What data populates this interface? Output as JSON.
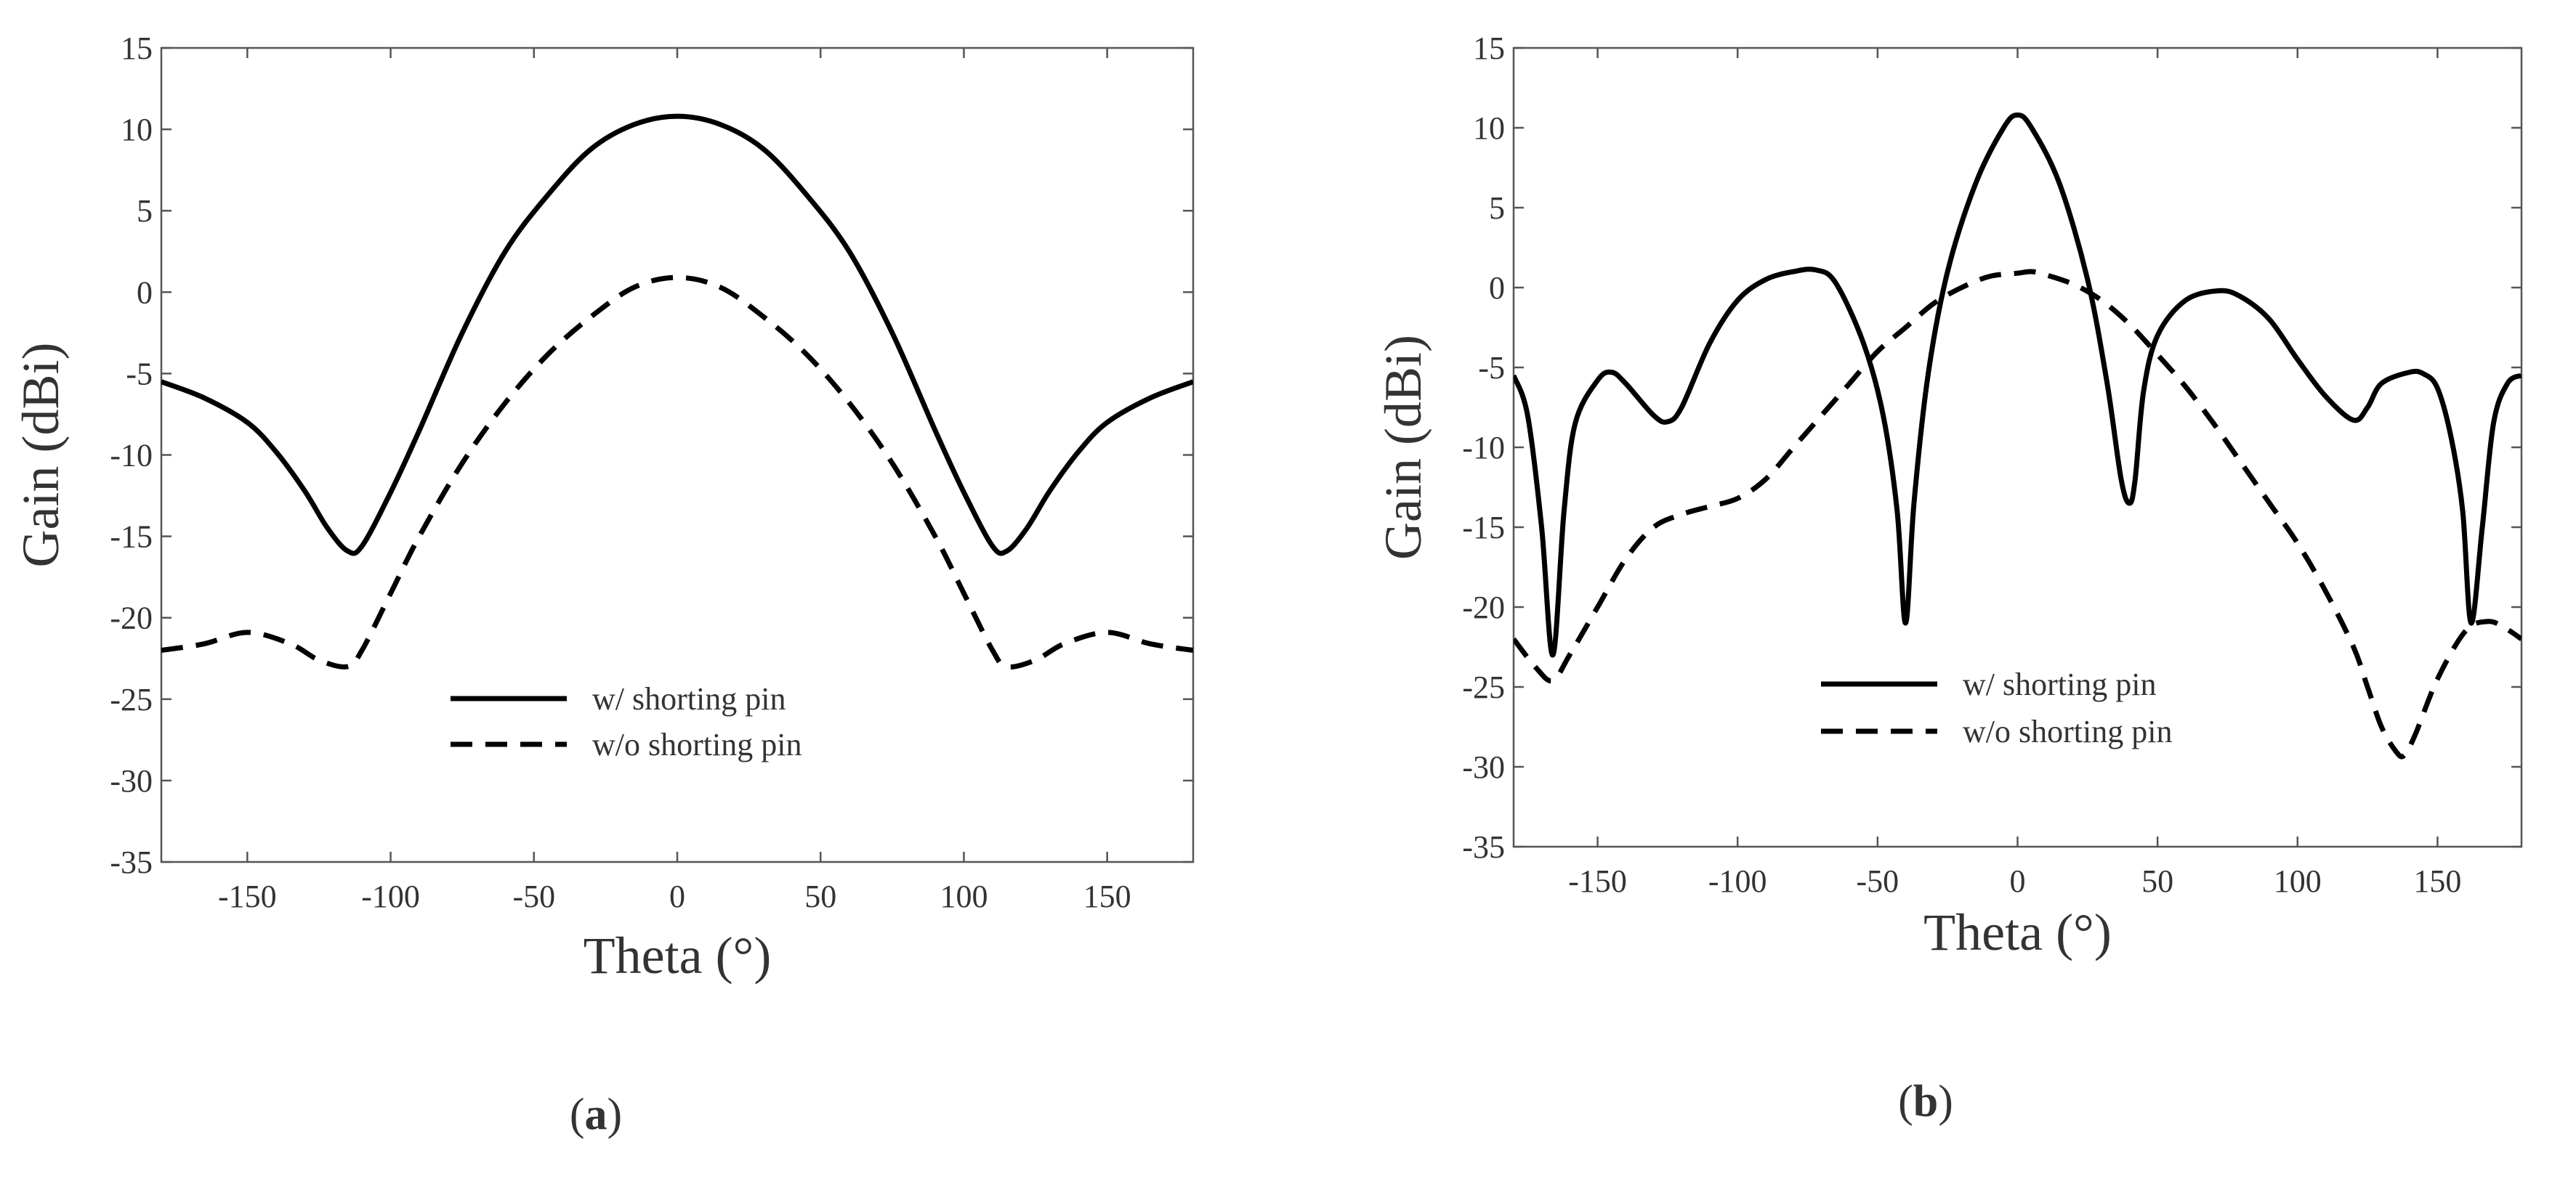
{
  "chart_data": [
    {
      "type": "line",
      "caption": "a",
      "xlabel": "Theta (°)",
      "ylabel": "Gain (dBi)",
      "xlim": [
        -180,
        180
      ],
      "ylim": [
        -35,
        15
      ],
      "xticks": [
        -150,
        -100,
        -50,
        0,
        50,
        100,
        150
      ],
      "yticks": [
        15,
        10,
        5,
        0,
        -5,
        -10,
        -15,
        -20,
        -25,
        -30,
        -35
      ],
      "grid": false,
      "legend_position": "lower-center",
      "series": [
        {
          "name": "w/ shorting pin",
          "style": "solid",
          "color": "#000000",
          "x": [
            -180,
            -165,
            -150,
            -140,
            -130,
            -122,
            -115,
            -110,
            -100,
            -90,
            -75,
            -60,
            -45,
            -30,
            -15,
            0,
            15,
            30,
            45,
            60,
            75,
            90,
            100,
            110,
            115,
            122,
            130,
            140,
            150,
            165,
            180
          ],
          "y": [
            -5.5,
            -6.5,
            -8.0,
            -9.8,
            -12.2,
            -14.5,
            -15.9,
            -15.6,
            -12.3,
            -8.5,
            -2.5,
            2.5,
            6.0,
            8.8,
            10.3,
            10.8,
            10.3,
            8.8,
            6.0,
            2.5,
            -2.5,
            -8.5,
            -12.3,
            -15.6,
            -15.9,
            -14.5,
            -12.2,
            -9.8,
            -8.0,
            -6.5,
            -5.5
          ]
        },
        {
          "name": "w/o shorting pin",
          "style": "dashed",
          "color": "#000000",
          "x": [
            -180,
            -165,
            -150,
            -135,
            -125,
            -115,
            -110,
            -100,
            -90,
            -75,
            -60,
            -45,
            -30,
            -15,
            0,
            15,
            30,
            45,
            60,
            75,
            90,
            100,
            110,
            115,
            125,
            135,
            150,
            165,
            180
          ],
          "y": [
            -22.0,
            -21.6,
            -20.9,
            -21.6,
            -22.6,
            -23.0,
            -22.0,
            -18.5,
            -15.0,
            -10.5,
            -6.8,
            -3.8,
            -1.5,
            0.3,
            0.9,
            0.3,
            -1.5,
            -3.8,
            -6.8,
            -10.5,
            -15.0,
            -18.5,
            -22.0,
            -23.0,
            -22.6,
            -21.6,
            -20.9,
            -21.6,
            -22.0
          ]
        }
      ]
    },
    {
      "type": "line",
      "caption": "b",
      "xlabel": "Theta (°)",
      "ylabel": "Gain (dBi)",
      "xlim": [
        -180,
        180
      ],
      "ylim": [
        -35,
        15
      ],
      "xticks": [
        -150,
        -100,
        -50,
        0,
        50,
        100,
        150
      ],
      "yticks": [
        15,
        10,
        5,
        0,
        -5,
        -10,
        -15,
        -20,
        -25,
        -30,
        -35
      ],
      "grid": false,
      "legend_position": "lower-center",
      "series": [
        {
          "name": "w/ shorting pin",
          "style": "solid",
          "color": "#000000",
          "x": [
            -180,
            -175,
            -170,
            -166,
            -162,
            -158,
            -150,
            -145,
            -140,
            -130,
            -125,
            -120,
            -110,
            -100,
            -90,
            -80,
            -72,
            -65,
            -55,
            -48,
            -43,
            -40,
            -37,
            -32,
            -25,
            -15,
            -5,
            0,
            5,
            15,
            25,
            32,
            37,
            40,
            42,
            45,
            50,
            60,
            72,
            80,
            90,
            100,
            110,
            120,
            125,
            130,
            140,
            145,
            150,
            155,
            159,
            162,
            166,
            170,
            175,
            180
          ],
          "y": [
            -5.5,
            -8.0,
            -15.0,
            -23.0,
            -14.0,
            -8.5,
            -5.8,
            -5.3,
            -6.0,
            -8.0,
            -8.4,
            -7.5,
            -3.5,
            -0.8,
            0.5,
            1.0,
            1.1,
            0.3,
            -3.5,
            -8.0,
            -14.0,
            -21.0,
            -13.5,
            -5.5,
            1.0,
            6.5,
            10.0,
            10.8,
            10.0,
            6.5,
            0.5,
            -6.0,
            -12.0,
            -13.5,
            -12.0,
            -6.5,
            -3.0,
            -0.8,
            -0.2,
            -0.6,
            -2.0,
            -4.5,
            -6.8,
            -8.3,
            -7.5,
            -6.0,
            -5.3,
            -5.4,
            -6.3,
            -9.5,
            -14.0,
            -21.0,
            -15.0,
            -8.5,
            -6.0,
            -5.5
          ]
        },
        {
          "name": "w/o shorting pin",
          "style": "dashed",
          "color": "#000000",
          "x": [
            -180,
            -172,
            -166,
            -160,
            -150,
            -140,
            -130,
            -120,
            -110,
            -100,
            -90,
            -80,
            -70,
            -60,
            -50,
            -40,
            -30,
            -20,
            -10,
            0,
            5,
            10,
            20,
            30,
            40,
            50,
            60,
            70,
            80,
            90,
            100,
            110,
            120,
            125,
            130,
            135,
            138,
            142,
            150,
            160,
            168,
            174,
            180
          ],
          "y": [
            -22.0,
            -23.8,
            -24.6,
            -23.0,
            -20.0,
            -17.0,
            -15.0,
            -14.2,
            -13.7,
            -13.2,
            -12.0,
            -10.0,
            -8.0,
            -6.0,
            -4.0,
            -2.5,
            -1.0,
            0.0,
            0.7,
            0.9,
            1.0,
            0.8,
            0.2,
            -0.8,
            -2.3,
            -4.2,
            -6.2,
            -8.5,
            -11.0,
            -13.5,
            -16.0,
            -19.0,
            -22.5,
            -25.0,
            -27.5,
            -29.0,
            -29.3,
            -28.0,
            -24.5,
            -21.5,
            -20.9,
            -21.3,
            -22.0
          ]
        }
      ]
    }
  ]
}
